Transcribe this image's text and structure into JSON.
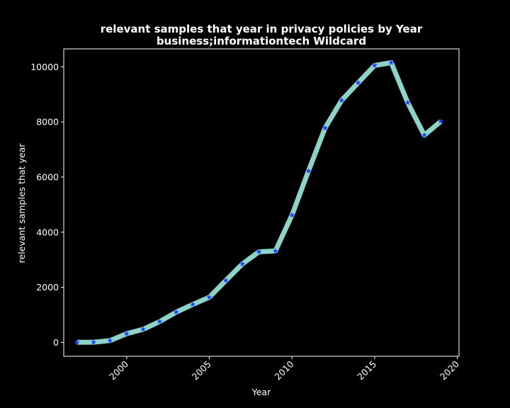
{
  "chart_data": {
    "type": "line",
    "title_line1": "relevant samples that year in privacy policies by Year",
    "title_line2": "business;informationtech Wildcard",
    "xlabel": "Year",
    "ylabel": "relevant samples that year",
    "xlim": [
      1996.2,
      2020.1
    ],
    "ylim": [
      -500,
      10650
    ],
    "xticks": [
      2000,
      2005,
      2010,
      2015,
      2020
    ],
    "yticks": [
      0,
      2000,
      4000,
      6000,
      8000,
      10000
    ],
    "grid": false,
    "series": [
      {
        "line_color": "#8dd3c7",
        "marker_color": "#1f3cff",
        "marker": "star",
        "x": [
          1997,
          1998,
          1999,
          2000,
          2001,
          2002,
          2003,
          2004,
          2005,
          2006,
          2007,
          2008,
          2009,
          2010,
          2011,
          2012,
          2013,
          2014,
          2015,
          2016,
          2017,
          2018,
          2019
        ],
        "y": [
          5,
          10,
          70,
          320,
          480,
          760,
          1100,
          1380,
          1640,
          2250,
          2850,
          3290,
          3320,
          4620,
          6220,
          7780,
          8780,
          9420,
          10050,
          10150,
          8700,
          7520,
          8020
        ]
      }
    ]
  },
  "colors": {
    "background": "#000000",
    "foreground": "#ffffff"
  }
}
